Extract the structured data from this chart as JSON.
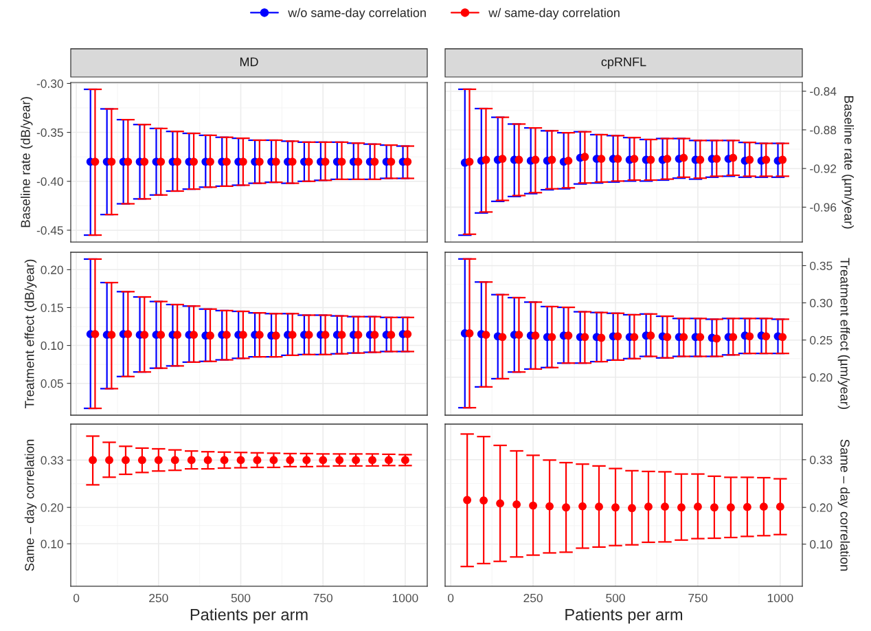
{
  "chart_data": [
    {
      "type": "scatter",
      "title": "MD",
      "ylabel": "Baseline rate (dB/year)",
      "xlim": [
        -17,
        1067
      ],
      "ylim": [
        -0.462,
        -0.299
      ],
      "yticks": [
        {
          "value": -0.3,
          "label": "-0.30"
        },
        {
          "value": -0.35,
          "label": "-0.35"
        },
        {
          "value": -0.4,
          "label": "-0.40"
        },
        {
          "value": -0.45,
          "label": "-0.45"
        }
      ],
      "tick_labels": "y",
      "grid": true,
      "marker": "circle",
      "legend": "top",
      "series": [
        {
          "name": "w/o same-day correlation",
          "color": "#0000ff",
          "x": [
            43,
            93,
            143,
            193,
            243,
            293,
            343,
            393,
            443,
            493,
            543,
            593,
            643,
            693,
            743,
            793,
            843,
            893,
            943,
            993
          ],
          "values": [
            -0.38,
            -0.38,
            -0.38,
            -0.38,
            -0.38,
            -0.38,
            -0.38,
            -0.38,
            -0.38,
            -0.38,
            -0.38,
            -0.38,
            -0.38,
            -0.38,
            -0.38,
            -0.38,
            -0.38,
            -0.38,
            -0.38,
            -0.38
          ],
          "errors": [
            [
              -0.455,
              -0.306
            ],
            [
              -0.434,
              -0.326
            ],
            [
              -0.423,
              -0.337
            ],
            [
              -0.418,
              -0.342
            ],
            [
              -0.414,
              -0.346
            ],
            [
              -0.41,
              -0.349
            ],
            [
              -0.408,
              -0.351
            ],
            [
              -0.406,
              -0.353
            ],
            [
              -0.405,
              -0.355
            ],
            [
              -0.404,
              -0.356
            ],
            [
              -0.402,
              -0.358
            ],
            [
              -0.401,
              -0.358
            ],
            [
              -0.402,
              -0.359
            ],
            [
              -0.4,
              -0.36
            ],
            [
              -0.399,
              -0.36
            ],
            [
              -0.398,
              -0.36
            ],
            [
              -0.398,
              -0.361
            ],
            [
              -0.398,
              -0.362
            ],
            [
              -0.397,
              -0.363
            ],
            [
              -0.397,
              -0.364
            ]
          ]
        },
        {
          "name": "w/ same-day correlation",
          "color": "#ff0000",
          "x": [
            57,
            107,
            157,
            207,
            257,
            307,
            357,
            407,
            457,
            507,
            557,
            607,
            657,
            707,
            757,
            807,
            857,
            907,
            957,
            1007
          ],
          "values": [
            -0.38,
            -0.38,
            -0.38,
            -0.38,
            -0.38,
            -0.38,
            -0.38,
            -0.38,
            -0.38,
            -0.38,
            -0.38,
            -0.38,
            -0.38,
            -0.38,
            -0.38,
            -0.38,
            -0.38,
            -0.38,
            -0.38,
            -0.38
          ],
          "errors": [
            [
              -0.455,
              -0.306
            ],
            [
              -0.434,
              -0.326
            ],
            [
              -0.423,
              -0.337
            ],
            [
              -0.418,
              -0.342
            ],
            [
              -0.414,
              -0.346
            ],
            [
              -0.41,
              -0.349
            ],
            [
              -0.408,
              -0.351
            ],
            [
              -0.406,
              -0.353
            ],
            [
              -0.405,
              -0.355
            ],
            [
              -0.404,
              -0.356
            ],
            [
              -0.402,
              -0.358
            ],
            [
              -0.401,
              -0.358
            ],
            [
              -0.402,
              -0.359
            ],
            [
              -0.4,
              -0.36
            ],
            [
              -0.399,
              -0.36
            ],
            [
              -0.398,
              -0.36
            ],
            [
              -0.398,
              -0.361
            ],
            [
              -0.398,
              -0.362
            ],
            [
              -0.397,
              -0.363
            ],
            [
              -0.397,
              -0.364
            ]
          ]
        }
      ]
    },
    {
      "type": "scatter",
      "title": "cpRNFL",
      "ylabel": "Baseline rate (µm/year)",
      "xlim": [
        -17,
        1067
      ],
      "ylim": [
        -0.996,
        -0.831
      ],
      "yticks": [
        {
          "value": -0.84,
          "label": "-0.84"
        },
        {
          "value": -0.88,
          "label": "-0.88"
        },
        {
          "value": -0.92,
          "label": "-0.92"
        },
        {
          "value": -0.96,
          "label": "-0.96"
        }
      ],
      "tick_labels": "y",
      "grid": true,
      "marker": "circle",
      "series": [
        {
          "color": "#0000ff",
          "x": [
            43,
            93,
            143,
            193,
            243,
            293,
            343,
            393,
            443,
            493,
            543,
            593,
            643,
            693,
            743,
            793,
            843,
            893,
            943,
            993
          ],
          "values": [
            -0.914,
            -0.912,
            -0.911,
            -0.911,
            -0.912,
            -0.912,
            -0.913,
            -0.909,
            -0.91,
            -0.91,
            -0.911,
            -0.911,
            -0.911,
            -0.91,
            -0.911,
            -0.91,
            -0.91,
            -0.912,
            -0.912,
            -0.912
          ],
          "errors": [
            [
              -0.989,
              -0.838
            ],
            [
              -0.966,
              -0.858
            ],
            [
              -0.954,
              -0.867
            ],
            [
              -0.949,
              -0.874
            ],
            [
              -0.946,
              -0.878
            ],
            [
              -0.942,
              -0.881
            ],
            [
              -0.941,
              -0.883
            ],
            [
              -0.936,
              -0.882
            ],
            [
              -0.935,
              -0.885
            ],
            [
              -0.934,
              -0.886
            ],
            [
              -0.933,
              -0.888
            ],
            [
              -0.933,
              -0.89
            ],
            [
              -0.932,
              -0.889
            ],
            [
              -0.93,
              -0.889
            ],
            [
              -0.931,
              -0.891
            ],
            [
              -0.929,
              -0.891
            ],
            [
              -0.928,
              -0.891
            ],
            [
              -0.929,
              -0.893
            ],
            [
              -0.929,
              -0.894
            ],
            [
              -0.929,
              -0.894
            ]
          ]
        },
        {
          "color": "#ff0000",
          "x": [
            57,
            107,
            157,
            207,
            257,
            307,
            357,
            407,
            457,
            507,
            557,
            607,
            657,
            707,
            757,
            807,
            857,
            907,
            957,
            1007
          ],
          "values": [
            -0.913,
            -0.911,
            -0.91,
            -0.911,
            -0.911,
            -0.911,
            -0.912,
            -0.908,
            -0.91,
            -0.91,
            -0.91,
            -0.911,
            -0.91,
            -0.909,
            -0.911,
            -0.91,
            -0.909,
            -0.911,
            -0.911,
            -0.911
          ],
          "errors": [
            [
              -0.988,
              -0.838
            ],
            [
              -0.965,
              -0.858
            ],
            [
              -0.953,
              -0.867
            ],
            [
              -0.948,
              -0.874
            ],
            [
              -0.945,
              -0.878
            ],
            [
              -0.941,
              -0.881
            ],
            [
              -0.94,
              -0.883
            ],
            [
              -0.935,
              -0.882
            ],
            [
              -0.934,
              -0.885
            ],
            [
              -0.933,
              -0.886
            ],
            [
              -0.932,
              -0.888
            ],
            [
              -0.932,
              -0.89
            ],
            [
              -0.931,
              -0.889
            ],
            [
              -0.929,
              -0.889
            ],
            [
              -0.93,
              -0.891
            ],
            [
              -0.928,
              -0.891
            ],
            [
              -0.927,
              -0.891
            ],
            [
              -0.928,
              -0.893
            ],
            [
              -0.928,
              -0.894
            ],
            [
              -0.928,
              -0.894
            ]
          ]
        }
      ]
    },
    {
      "type": "scatter",
      "ylabel": "Treatment effect (dB/year)",
      "xlim": [
        -17,
        1067
      ],
      "ylim": [
        0.008,
        0.223
      ],
      "yticks": [
        {
          "value": 0.05,
          "label": "0.05"
        },
        {
          "value": 0.1,
          "label": "0.10"
        },
        {
          "value": 0.15,
          "label": "0.15"
        },
        {
          "value": 0.2,
          "label": "0.20"
        }
      ],
      "tick_labels": "y",
      "grid": true,
      "marker": "circle",
      "series": [
        {
          "color": "#0000ff",
          "x": [
            43,
            93,
            143,
            193,
            243,
            293,
            343,
            393,
            443,
            493,
            543,
            593,
            643,
            693,
            743,
            793,
            843,
            893,
            943,
            993
          ],
          "values": [
            0.115,
            0.114,
            0.115,
            0.114,
            0.114,
            0.114,
            0.114,
            0.113,
            0.114,
            0.114,
            0.114,
            0.113,
            0.114,
            0.114,
            0.114,
            0.114,
            0.114,
            0.114,
            0.114,
            0.115
          ],
          "errors": [
            [
              0.017,
              0.214
            ],
            [
              0.043,
              0.183
            ],
            [
              0.059,
              0.171
            ],
            [
              0.065,
              0.164
            ],
            [
              0.07,
              0.158
            ],
            [
              0.073,
              0.154
            ],
            [
              0.078,
              0.152
            ],
            [
              0.079,
              0.148
            ],
            [
              0.081,
              0.146
            ],
            [
              0.083,
              0.145
            ],
            [
              0.085,
              0.143
            ],
            [
              0.085,
              0.142
            ],
            [
              0.087,
              0.142
            ],
            [
              0.088,
              0.14
            ],
            [
              0.088,
              0.14
            ],
            [
              0.089,
              0.139
            ],
            [
              0.09,
              0.138
            ],
            [
              0.091,
              0.138
            ],
            [
              0.092,
              0.137
            ],
            [
              0.092,
              0.137
            ]
          ]
        },
        {
          "color": "#ff0000",
          "x": [
            57,
            107,
            157,
            207,
            257,
            307,
            357,
            407,
            457,
            507,
            557,
            607,
            657,
            707,
            757,
            807,
            857,
            907,
            957,
            1007
          ],
          "values": [
            0.115,
            0.114,
            0.115,
            0.114,
            0.114,
            0.114,
            0.114,
            0.113,
            0.114,
            0.114,
            0.114,
            0.113,
            0.114,
            0.114,
            0.114,
            0.114,
            0.114,
            0.114,
            0.114,
            0.115
          ],
          "errors": [
            [
              0.017,
              0.214
            ],
            [
              0.043,
              0.183
            ],
            [
              0.059,
              0.171
            ],
            [
              0.065,
              0.164
            ],
            [
              0.07,
              0.158
            ],
            [
              0.073,
              0.154
            ],
            [
              0.078,
              0.152
            ],
            [
              0.079,
              0.148
            ],
            [
              0.081,
              0.146
            ],
            [
              0.083,
              0.145
            ],
            [
              0.085,
              0.143
            ],
            [
              0.085,
              0.142
            ],
            [
              0.087,
              0.142
            ],
            [
              0.088,
              0.14
            ],
            [
              0.088,
              0.14
            ],
            [
              0.089,
              0.139
            ],
            [
              0.09,
              0.138
            ],
            [
              0.091,
              0.138
            ],
            [
              0.092,
              0.137
            ],
            [
              0.092,
              0.137
            ]
          ]
        }
      ]
    },
    {
      "type": "scatter",
      "ylabel": "Treatment effect (µm/year)",
      "xlim": [
        -17,
        1067
      ],
      "ylim": [
        0.149,
        0.368
      ],
      "yticks": [
        {
          "value": 0.2,
          "label": "0.20"
        },
        {
          "value": 0.25,
          "label": "0.25"
        },
        {
          "value": 0.3,
          "label": "0.30"
        },
        {
          "value": 0.35,
          "label": "0.35"
        }
      ],
      "tick_labels": "y",
      "grid": true,
      "marker": "circle",
      "series": [
        {
          "color": "#0000ff",
          "x": [
            43,
            93,
            143,
            193,
            243,
            293,
            343,
            393,
            443,
            493,
            543,
            593,
            643,
            693,
            743,
            793,
            843,
            893,
            943,
            993
          ],
          "values": [
            0.259,
            0.258,
            0.255,
            0.257,
            0.256,
            0.254,
            0.256,
            0.254,
            0.254,
            0.255,
            0.254,
            0.256,
            0.255,
            0.254,
            0.254,
            0.253,
            0.254,
            0.256,
            0.256,
            0.255
          ],
          "errors": [
            [
              0.159,
              0.359
            ],
            [
              0.187,
              0.328
            ],
            [
              0.198,
              0.311
            ],
            [
              0.207,
              0.307
            ],
            [
              0.211,
              0.301
            ],
            [
              0.213,
              0.295
            ],
            [
              0.219,
              0.294
            ],
            [
              0.219,
              0.288
            ],
            [
              0.221,
              0.287
            ],
            [
              0.223,
              0.286
            ],
            [
              0.225,
              0.284
            ],
            [
              0.228,
              0.285
            ],
            [
              0.226,
              0.282
            ],
            [
              0.228,
              0.279
            ],
            [
              0.228,
              0.279
            ],
            [
              0.228,
              0.278
            ],
            [
              0.23,
              0.279
            ],
            [
              0.232,
              0.279
            ],
            [
              0.232,
              0.279
            ],
            [
              0.232,
              0.278
            ]
          ]
        },
        {
          "color": "#ff0000",
          "x": [
            57,
            107,
            157,
            207,
            257,
            307,
            357,
            407,
            457,
            507,
            557,
            607,
            657,
            707,
            757,
            807,
            857,
            907,
            957,
            1007
          ],
          "values": [
            0.259,
            0.257,
            0.254,
            0.257,
            0.256,
            0.254,
            0.256,
            0.254,
            0.253,
            0.255,
            0.254,
            0.256,
            0.254,
            0.254,
            0.254,
            0.252,
            0.254,
            0.255,
            0.255,
            0.254
          ],
          "errors": [
            [
              0.159,
              0.359
            ],
            [
              0.187,
              0.328
            ],
            [
              0.198,
              0.311
            ],
            [
              0.207,
              0.307
            ],
            [
              0.211,
              0.301
            ],
            [
              0.213,
              0.295
            ],
            [
              0.219,
              0.294
            ],
            [
              0.219,
              0.288
            ],
            [
              0.221,
              0.287
            ],
            [
              0.223,
              0.286
            ],
            [
              0.225,
              0.284
            ],
            [
              0.228,
              0.285
            ],
            [
              0.226,
              0.282
            ],
            [
              0.228,
              0.279
            ],
            [
              0.228,
              0.279
            ],
            [
              0.228,
              0.278
            ],
            [
              0.23,
              0.279
            ],
            [
              0.232,
              0.279
            ],
            [
              0.232,
              0.279
            ],
            [
              0.232,
              0.278
            ]
          ]
        }
      ]
    },
    {
      "type": "scatter",
      "ylabel": "Same – day correlation",
      "xlabel": "Patients per arm",
      "x": [
        50,
        100,
        150,
        200,
        250,
        300,
        350,
        400,
        450,
        500,
        550,
        600,
        650,
        700,
        750,
        800,
        850,
        900,
        950,
        1000
      ],
      "xlim": [
        -17,
        1067
      ],
      "ylim": [
        -0.017,
        0.429
      ],
      "xticks": [
        0,
        250,
        500,
        750,
        1000
      ],
      "yticks": [
        {
          "value": 0.1,
          "label": "0.10"
        },
        {
          "value": 0.2,
          "label": "0.20"
        },
        {
          "value": 0.33,
          "label": "0.33"
        }
      ],
      "grid": true,
      "marker": "circle",
      "series": [
        {
          "color": "#ff0000",
          "values": [
            0.33,
            0.33,
            0.33,
            0.33,
            0.33,
            0.33,
            0.33,
            0.33,
            0.33,
            0.33,
            0.33,
            0.33,
            0.33,
            0.33,
            0.33,
            0.33,
            0.33,
            0.33,
            0.33,
            0.33
          ],
          "errors": [
            [
              0.262,
              0.396
            ],
            [
              0.283,
              0.379
            ],
            [
              0.291,
              0.368
            ],
            [
              0.296,
              0.363
            ],
            [
              0.3,
              0.361
            ],
            [
              0.302,
              0.358
            ],
            [
              0.306,
              0.355
            ],
            [
              0.306,
              0.353
            ],
            [
              0.308,
              0.352
            ],
            [
              0.309,
              0.351
            ],
            [
              0.31,
              0.35
            ],
            [
              0.31,
              0.349
            ],
            [
              0.312,
              0.348
            ],
            [
              0.312,
              0.348
            ],
            [
              0.313,
              0.347
            ],
            [
              0.314,
              0.347
            ],
            [
              0.314,
              0.347
            ],
            [
              0.314,
              0.347
            ],
            [
              0.315,
              0.346
            ],
            [
              0.315,
              0.345
            ]
          ]
        }
      ]
    },
    {
      "type": "scatter",
      "ylabel": "Same – day correlation",
      "xlabel": "Patients per arm",
      "x": [
        50,
        100,
        150,
        200,
        250,
        300,
        350,
        400,
        450,
        500,
        550,
        600,
        650,
        700,
        750,
        800,
        850,
        900,
        950,
        1000
      ],
      "xlim": [
        -17,
        1067
      ],
      "ylim": [
        -0.015,
        0.427
      ],
      "xticks": [
        0,
        250,
        500,
        750,
        1000
      ],
      "yticks": [
        {
          "value": 0.1,
          "label": "0.10"
        },
        {
          "value": 0.2,
          "label": "0.20"
        },
        {
          "value": 0.33,
          "label": "0.33"
        }
      ],
      "grid": true,
      "marker": "circle",
      "series": [
        {
          "color": "#ff0000",
          "values": [
            0.22,
            0.219,
            0.211,
            0.208,
            0.205,
            0.203,
            0.2,
            0.203,
            0.202,
            0.2,
            0.198,
            0.202,
            0.202,
            0.2,
            0.202,
            0.2,
            0.2,
            0.201,
            0.202,
            0.202
          ],
          "errors": [
            [
              0.039,
              0.4
            ],
            [
              0.047,
              0.393
            ],
            [
              0.053,
              0.369
            ],
            [
              0.065,
              0.354
            ],
            [
              0.07,
              0.342
            ],
            [
              0.076,
              0.329
            ],
            [
              0.078,
              0.322
            ],
            [
              0.089,
              0.318
            ],
            [
              0.092,
              0.313
            ],
            [
              0.096,
              0.306
            ],
            [
              0.098,
              0.3
            ],
            [
              0.105,
              0.298
            ],
            [
              0.106,
              0.297
            ],
            [
              0.111,
              0.291
            ],
            [
              0.115,
              0.291
            ],
            [
              0.116,
              0.285
            ],
            [
              0.118,
              0.282
            ],
            [
              0.121,
              0.282
            ],
            [
              0.123,
              0.281
            ],
            [
              0.126,
              0.278
            ]
          ]
        }
      ]
    }
  ]
}
